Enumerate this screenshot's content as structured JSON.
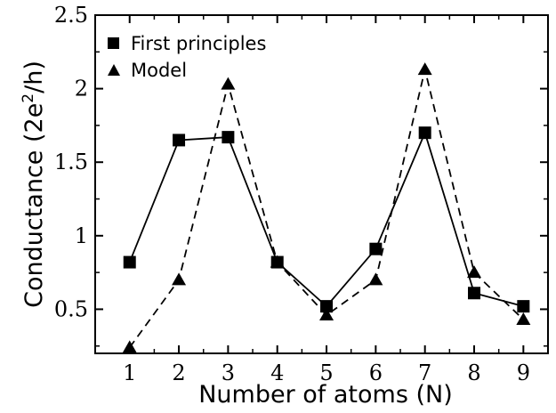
{
  "chart_data": {
    "type": "line",
    "xlabel": "Number of atoms (N)",
    "ylabel_main": "Conductance (2e",
    "ylabel_sup": "2",
    "ylabel_tail": "/h)",
    "xlim": [
      0.3,
      9.5
    ],
    "ylim": [
      0.2,
      2.5
    ],
    "x_ticks": [
      1,
      2,
      3,
      4,
      5,
      6,
      7,
      8,
      9
    ],
    "y_ticks": [
      0.5,
      1,
      1.5,
      2,
      2.5
    ],
    "y_tick_labels": [
      "0.5",
      "1",
      "1.5",
      "2",
      "2.5"
    ],
    "legend_position": "top-left",
    "series": [
      {
        "name": "First principles",
        "marker": "square",
        "line": "solid",
        "x": [
          1,
          2,
          3,
          4,
          5,
          6,
          7,
          8,
          9
        ],
        "y": [
          0.82,
          1.65,
          1.67,
          0.82,
          0.52,
          0.91,
          1.7,
          0.61,
          0.52
        ]
      },
      {
        "name": "Model",
        "marker": "triangle",
        "line": "dashed",
        "x": [
          1,
          2,
          3,
          4,
          5,
          6,
          7,
          8,
          9
        ],
        "y": [
          0.24,
          0.7,
          2.03,
          0.82,
          0.46,
          0.7,
          2.13,
          0.75,
          0.43
        ]
      }
    ]
  }
}
